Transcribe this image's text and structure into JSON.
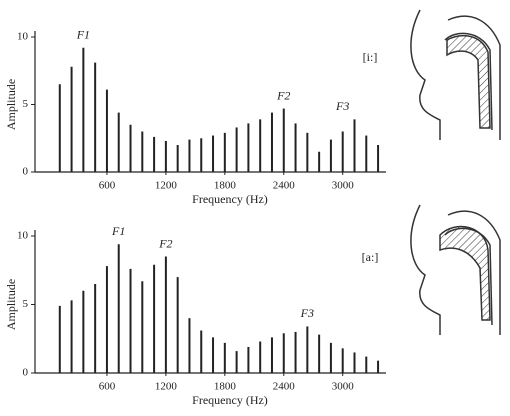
{
  "chart_data": [
    {
      "type": "bar",
      "label": "[i:]",
      "xlabel": "Frequency (Hz)",
      "ylabel": "Amplitude",
      "color": "#222222",
      "x": [
        120,
        240,
        360,
        480,
        600,
        720,
        840,
        960,
        1080,
        1200,
        1320,
        1440,
        1560,
        1680,
        1800,
        1920,
        2040,
        2160,
        2280,
        2400,
        2520,
        2640,
        2760,
        2880,
        3000,
        3120,
        3240,
        3360
      ],
      "values": [
        6.5,
        7.8,
        9.2,
        8.1,
        6.1,
        4.4,
        3.5,
        3.0,
        2.6,
        2.3,
        2.0,
        2.4,
        2.5,
        2.7,
        2.9,
        3.3,
        3.6,
        3.9,
        4.4,
        4.7,
        3.6,
        2.9,
        1.5,
        2.4,
        3.0,
        3.9,
        2.7,
        2.0
      ],
      "xlim": [
        0,
        3400
      ],
      "ylim": [
        0,
        10
      ],
      "xticks": [
        600,
        1200,
        1800,
        2400,
        3000
      ],
      "yticks": [
        0,
        5,
        10
      ],
      "annotations": [
        {
          "text": "F1",
          "x": 360,
          "y": 9.2
        },
        {
          "text": "F2",
          "x": 2400,
          "y": 4.7
        },
        {
          "text": "F3",
          "x": 3000,
          "y": 3.9
        }
      ]
    },
    {
      "type": "bar",
      "label": "[a:]",
      "xlabel": "Frequency (Hz)",
      "ylabel": "Amplitude",
      "color": "#222222",
      "x": [
        120,
        240,
        360,
        480,
        600,
        720,
        840,
        960,
        1080,
        1200,
        1320,
        1440,
        1560,
        1680,
        1800,
        1920,
        2040,
        2160,
        2280,
        2400,
        2520,
        2640,
        2760,
        2880,
        3000,
        3120,
        3240,
        3360
      ],
      "values": [
        4.9,
        5.3,
        6.0,
        6.5,
        7.8,
        9.4,
        7.6,
        6.7,
        7.9,
        8.5,
        7.0,
        4.0,
        3.1,
        2.6,
        2.2,
        1.6,
        1.9,
        2.3,
        2.6,
        2.9,
        3.0,
        3.4,
        2.8,
        2.2,
        1.8,
        1.5,
        1.2,
        0.9
      ],
      "xlim": [
        0,
        3400
      ],
      "ylim": [
        0,
        10
      ],
      "xticks": [
        600,
        1200,
        1800,
        2400,
        3000
      ],
      "yticks": [
        0,
        5,
        10
      ],
      "annotations": [
        {
          "text": "F1",
          "x": 720,
          "y": 9.4
        },
        {
          "text": "F2",
          "x": 1200,
          "y": 8.5
        },
        {
          "text": "F3",
          "x": 2640,
          "y": 3.4
        }
      ]
    }
  ]
}
